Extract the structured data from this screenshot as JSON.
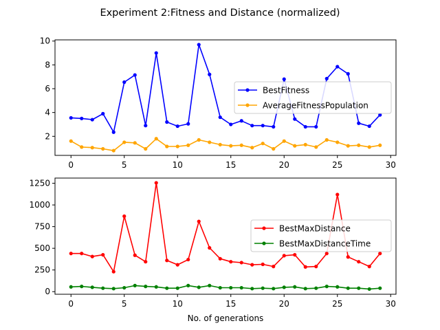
{
  "figure": {
    "title": "Experiment 2:Fitness and Distance (normalized)"
  },
  "chart_data": [
    {
      "type": "line",
      "x": [
        0,
        1,
        2,
        3,
        4,
        5,
        6,
        7,
        8,
        9,
        10,
        11,
        12,
        13,
        14,
        15,
        16,
        17,
        18,
        19,
        20,
        21,
        22,
        23,
        24,
        25,
        26,
        27,
        28,
        29
      ],
      "xlim": [
        -1.5,
        30.5
      ],
      "ylim": [
        0.4,
        10.1
      ],
      "xticks": [
        0,
        5,
        10,
        15,
        20,
        25,
        30
      ],
      "yticks": [
        2,
        4,
        6,
        8,
        10
      ],
      "xlabel": "",
      "ylabel": "",
      "legend_position": "center-right",
      "series": [
        {
          "name": "BestFitness",
          "color": "#0000ff",
          "values": [
            3.55,
            3.5,
            3.4,
            3.9,
            2.35,
            6.55,
            7.15,
            2.9,
            9.0,
            3.2,
            2.85,
            3.05,
            9.7,
            7.2,
            3.6,
            3.0,
            3.3,
            2.9,
            2.9,
            2.8,
            6.8,
            3.45,
            2.8,
            2.8,
            6.85,
            7.85,
            7.25,
            3.1,
            2.85,
            3.8
          ]
        },
        {
          "name": "AverageFitnessPopulation",
          "color": "#ffa500",
          "values": [
            1.6,
            1.1,
            1.05,
            0.95,
            0.8,
            1.5,
            1.45,
            0.95,
            1.8,
            1.15,
            1.15,
            1.25,
            1.7,
            1.5,
            1.3,
            1.2,
            1.25,
            1.05,
            1.4,
            0.95,
            1.6,
            1.2,
            1.3,
            1.1,
            1.7,
            1.5,
            1.2,
            1.25,
            1.1,
            1.25
          ]
        }
      ]
    },
    {
      "type": "line",
      "x": [
        0,
        1,
        2,
        3,
        4,
        5,
        6,
        7,
        8,
        9,
        10,
        11,
        12,
        13,
        14,
        15,
        16,
        17,
        18,
        19,
        20,
        21,
        22,
        23,
        24,
        25,
        26,
        27,
        28,
        29
      ],
      "xlim": [
        -1.5,
        30.5
      ],
      "ylim": [
        -30,
        1310
      ],
      "xticks": [
        0,
        5,
        10,
        15,
        20,
        25,
        30
      ],
      "yticks": [
        0,
        250,
        500,
        750,
        1000,
        1250
      ],
      "xlabel": "No. of generations",
      "ylabel": "",
      "legend_position": "center-right",
      "series": [
        {
          "name": "BestMaxDistance",
          "color": "#ff0000",
          "values": [
            440,
            440,
            405,
            425,
            230,
            870,
            420,
            345,
            1255,
            360,
            310,
            370,
            810,
            505,
            380,
            345,
            335,
            310,
            315,
            290,
            415,
            425,
            285,
            290,
            440,
            1120,
            400,
            345,
            290,
            440
          ]
        },
        {
          "name": "BestMaxDistanceTime",
          "color": "#008000",
          "values": [
            55,
            60,
            50,
            40,
            35,
            45,
            70,
            60,
            55,
            40,
            40,
            70,
            50,
            70,
            45,
            45,
            45,
            35,
            40,
            35,
            50,
            55,
            35,
            40,
            60,
            55,
            40,
            40,
            30,
            40
          ]
        }
      ]
    }
  ]
}
